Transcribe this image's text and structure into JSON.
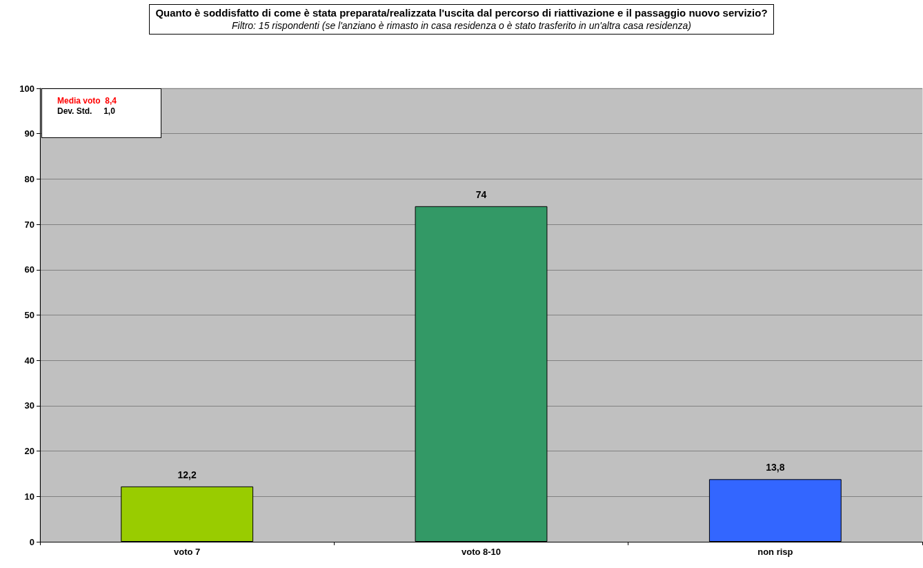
{
  "chart_data": {
    "type": "bar",
    "title": "Quanto è soddisfatto di come è stata preparata/realizzata l'uscita dal percorso di riattivazione e il passaggio nuovo servizio?",
    "subtitle": "Filtro: 15 rispondenti (se l'anziano è rimasto in casa residenza o è stato trasferito in un'altra casa residenza)",
    "categories": [
      "voto 7",
      "voto 8-10",
      "non risp"
    ],
    "values": [
      12.2,
      74,
      13.8
    ],
    "value_labels": [
      "12,2",
      "74",
      "13,8"
    ],
    "colors": [
      "#99cc00",
      "#339966",
      "#3366ff"
    ],
    "ylim": [
      0,
      100
    ],
    "yticks": [
      0,
      10,
      20,
      30,
      40,
      50,
      60,
      70,
      80,
      90,
      100
    ],
    "grid": "y",
    "annotations": [
      "Media voto  8,4",
      "Dev. Std.     1,0"
    ]
  }
}
